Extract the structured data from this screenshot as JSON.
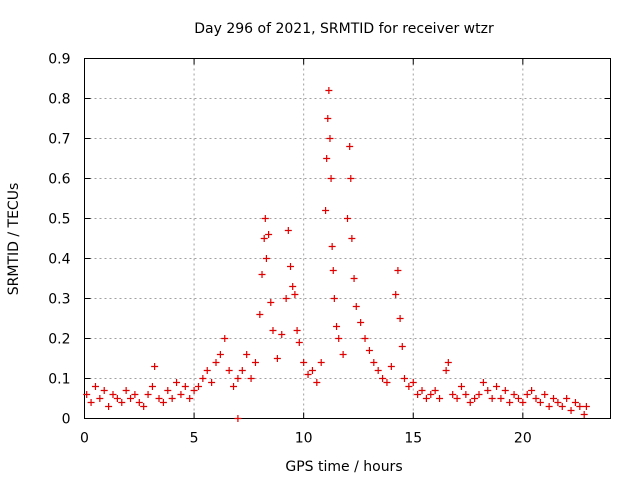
{
  "chart_data": {
    "type": "scatter",
    "title": "Day 296 of 2021, SRMTID for receiver wtzr",
    "xlabel": "GPS time / hours",
    "ylabel": "SRMTID / TECUs",
    "xlim": [
      0,
      24
    ],
    "ylim": [
      0,
      0.9
    ],
    "xticks": [
      "0",
      "5",
      "10",
      "15",
      "20"
    ],
    "yticks": [
      "0",
      "0.1",
      "0.2",
      "0.3",
      "0.4",
      "0.5",
      "0.6",
      "0.7",
      "0.8",
      "0.9"
    ],
    "marker": "plus",
    "color": "#e00000",
    "grid": true,
    "series": [
      {
        "name": "wtzr",
        "points": [
          [
            0.1,
            0.06
          ],
          [
            0.3,
            0.04
          ],
          [
            0.5,
            0.08
          ],
          [
            0.7,
            0.05
          ],
          [
            0.9,
            0.07
          ],
          [
            1.1,
            0.03
          ],
          [
            1.3,
            0.06
          ],
          [
            1.5,
            0.05
          ],
          [
            1.7,
            0.04
          ],
          [
            1.9,
            0.07
          ],
          [
            2.1,
            0.05
          ],
          [
            2.3,
            0.06
          ],
          [
            2.5,
            0.04
          ],
          [
            2.7,
            0.03
          ],
          [
            2.9,
            0.06
          ],
          [
            3.1,
            0.08
          ],
          [
            3.2,
            0.13
          ],
          [
            3.4,
            0.05
          ],
          [
            3.6,
            0.04
          ],
          [
            3.8,
            0.07
          ],
          [
            4.0,
            0.05
          ],
          [
            4.2,
            0.09
          ],
          [
            4.4,
            0.06
          ],
          [
            4.6,
            0.08
          ],
          [
            4.8,
            0.05
          ],
          [
            5.0,
            0.07
          ],
          [
            5.2,
            0.08
          ],
          [
            5.4,
            0.1
          ],
          [
            5.6,
            0.12
          ],
          [
            5.8,
            0.09
          ],
          [
            6.0,
            0.14
          ],
          [
            6.2,
            0.16
          ],
          [
            6.4,
            0.2
          ],
          [
            6.6,
            0.12
          ],
          [
            6.8,
            0.08
          ],
          [
            7.0,
            0.0
          ],
          [
            7.0,
            0.1
          ],
          [
            7.2,
            0.12
          ],
          [
            7.4,
            0.16
          ],
          [
            7.6,
            0.1
          ],
          [
            7.8,
            0.14
          ],
          [
            8.0,
            0.26
          ],
          [
            8.1,
            0.36
          ],
          [
            8.2,
            0.45
          ],
          [
            8.25,
            0.5
          ],
          [
            8.3,
            0.4
          ],
          [
            8.4,
            0.46
          ],
          [
            8.5,
            0.29
          ],
          [
            8.6,
            0.22
          ],
          [
            8.8,
            0.15
          ],
          [
            9.0,
            0.21
          ],
          [
            9.2,
            0.3
          ],
          [
            9.3,
            0.47
          ],
          [
            9.4,
            0.38
          ],
          [
            9.5,
            0.33
          ],
          [
            9.6,
            0.31
          ],
          [
            9.7,
            0.22
          ],
          [
            9.8,
            0.19
          ],
          [
            10.0,
            0.14
          ],
          [
            10.2,
            0.11
          ],
          [
            10.4,
            0.12
          ],
          [
            10.6,
            0.09
          ],
          [
            10.8,
            0.14
          ],
          [
            11.0,
            0.52
          ],
          [
            11.05,
            0.65
          ],
          [
            11.1,
            0.75
          ],
          [
            11.15,
            0.82
          ],
          [
            11.2,
            0.7
          ],
          [
            11.25,
            0.6
          ],
          [
            11.3,
            0.43
          ],
          [
            11.35,
            0.37
          ],
          [
            11.4,
            0.3
          ],
          [
            11.5,
            0.23
          ],
          [
            11.6,
            0.2
          ],
          [
            11.8,
            0.16
          ],
          [
            12.0,
            0.5
          ],
          [
            12.1,
            0.68
          ],
          [
            12.15,
            0.6
          ],
          [
            12.2,
            0.45
          ],
          [
            12.3,
            0.35
          ],
          [
            12.4,
            0.28
          ],
          [
            12.6,
            0.24
          ],
          [
            12.8,
            0.2
          ],
          [
            13.0,
            0.17
          ],
          [
            13.2,
            0.14
          ],
          [
            13.4,
            0.12
          ],
          [
            13.6,
            0.1
          ],
          [
            13.8,
            0.09
          ],
          [
            14.0,
            0.13
          ],
          [
            14.2,
            0.31
          ],
          [
            14.3,
            0.37
          ],
          [
            14.4,
            0.25
          ],
          [
            14.5,
            0.18
          ],
          [
            14.6,
            0.1
          ],
          [
            14.8,
            0.08
          ],
          [
            15.0,
            0.09
          ],
          [
            15.2,
            0.06
          ],
          [
            15.4,
            0.07
          ],
          [
            15.6,
            0.05
          ],
          [
            15.8,
            0.06
          ],
          [
            16.0,
            0.07
          ],
          [
            16.2,
            0.05
          ],
          [
            16.5,
            0.12
          ],
          [
            16.6,
            0.14
          ],
          [
            16.8,
            0.06
          ],
          [
            17.0,
            0.05
          ],
          [
            17.2,
            0.08
          ],
          [
            17.4,
            0.06
          ],
          [
            17.6,
            0.04
          ],
          [
            17.8,
            0.05
          ],
          [
            18.0,
            0.06
          ],
          [
            18.2,
            0.09
          ],
          [
            18.4,
            0.07
          ],
          [
            18.6,
            0.05
          ],
          [
            18.8,
            0.08
          ],
          [
            19.0,
            0.05
          ],
          [
            19.2,
            0.07
          ],
          [
            19.4,
            0.04
          ],
          [
            19.6,
            0.06
          ],
          [
            19.8,
            0.05
          ],
          [
            20.0,
            0.04
          ],
          [
            20.2,
            0.06
          ],
          [
            20.4,
            0.07
          ],
          [
            20.6,
            0.05
          ],
          [
            20.8,
            0.04
          ],
          [
            21.0,
            0.06
          ],
          [
            21.2,
            0.03
          ],
          [
            21.4,
            0.05
          ],
          [
            21.6,
            0.04
          ],
          [
            21.8,
            0.03
          ],
          [
            22.0,
            0.05
          ],
          [
            22.2,
            0.02
          ],
          [
            22.4,
            0.04
          ],
          [
            22.6,
            0.03
          ],
          [
            22.8,
            0.01
          ],
          [
            22.9,
            0.03
          ]
        ]
      }
    ]
  }
}
